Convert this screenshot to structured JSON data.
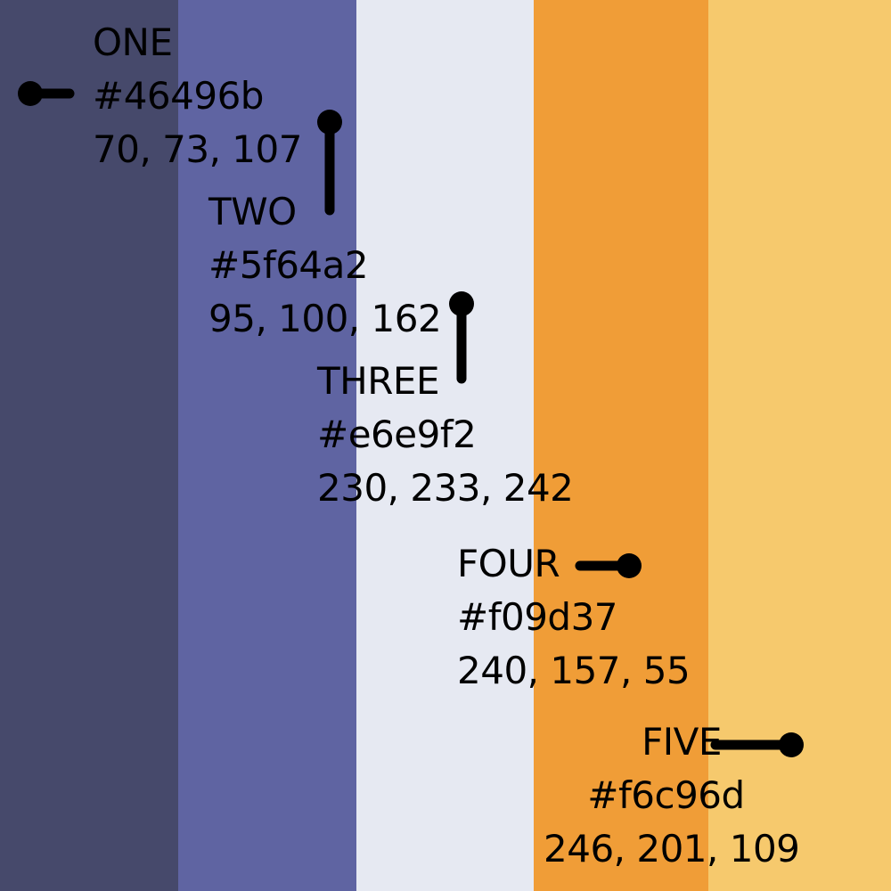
{
  "swatches": [
    {
      "name": "ONE",
      "hex_label": "#46496b",
      "rgb_label": "70, 73, 107",
      "color": "#46496b"
    },
    {
      "name": "TWO",
      "hex_label": "#5f64a2",
      "rgb_label": "95, 100, 162",
      "color": "#5f64a2"
    },
    {
      "name": "THREE",
      "hex_label": "#e6e9f2",
      "rgb_label": "230, 233, 242",
      "color": "#e6e9f2"
    },
    {
      "name": "FOUR",
      "hex_label": "#f09d37",
      "rgb_label": "240, 157, 55",
      "color": "#f09d37"
    },
    {
      "name": "FIVE",
      "hex_label": "#f6c96d",
      "rgb_label": "246, 201, 109",
      "color": "#f6c96d"
    }
  ],
  "pin_color": "#000000"
}
